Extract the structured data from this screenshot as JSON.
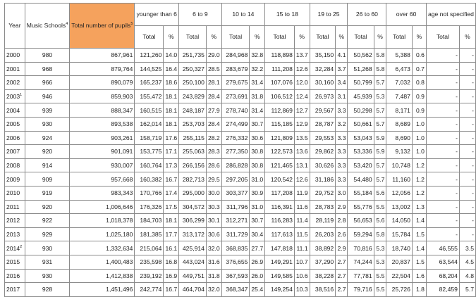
{
  "headers": {
    "year": "Year",
    "music_schools": "Music Schools",
    "music_schools_sup": "4",
    "total_pupils": "Total number of pupils",
    "total_pupils_sup": "5",
    "groups": [
      "younger than 6",
      "6 to 9",
      "10 to 14",
      "15 to 18",
      "19 to 25",
      "26 to 60",
      "over 60",
      "age not specified"
    ],
    "sub_total": "Total",
    "sub_pct": "%"
  },
  "rows": [
    {
      "year": "2000",
      "sup": "",
      "schools": "980",
      "total": "867,961",
      "cells": [
        "121,260",
        "14.0",
        "251,735",
        "29.0",
        "284,968",
        "32.8",
        "118,898",
        "13.7",
        "35,150",
        "4.1",
        "50,562",
        "5.8",
        "5,388",
        "0.6",
        "-",
        "-"
      ]
    },
    {
      "year": "2001",
      "sup": "",
      "schools": "968",
      "total": "879,764",
      "cells": [
        "144,525",
        "16.4",
        "250,327",
        "28.5",
        "283,679",
        "32.2",
        "111,208",
        "12.6",
        "32,284",
        "3.7",
        "51,268",
        "5.8",
        "6,473",
        "0.7",
        "-",
        "-"
      ]
    },
    {
      "year": "2002",
      "sup": "",
      "schools": "966",
      "total": "890,079",
      "cells": [
        "165,237",
        "18.6",
        "250,100",
        "28.1",
        "279,675",
        "31.4",
        "107,076",
        "12.0",
        "30,160",
        "3.4",
        "50,799",
        "5.7",
        "7,032",
        "0.8",
        "-",
        "-"
      ]
    },
    {
      "year": "2003",
      "sup": "1",
      "schools": "946",
      "total": "859,903",
      "cells": [
        "155,472",
        "18.1",
        "243,829",
        "28.4",
        "273,691",
        "31.8",
        "106,512",
        "12.4",
        "26,973",
        "3.1",
        "45,939",
        "5.3",
        "7,487",
        "0.9",
        "-",
        "-"
      ]
    },
    {
      "year": "2004",
      "sup": "",
      "schools": "939",
      "total": "888,347",
      "cells": [
        "160,515",
        "18.1",
        "248,187",
        "27.9",
        "278,740",
        "31.4",
        "112,869",
        "12.7",
        "29,567",
        "3.3",
        "50,298",
        "5.7",
        "8,171",
        "0.9",
        "-",
        "-"
      ]
    },
    {
      "year": "2005",
      "sup": "",
      "schools": "930",
      "total": "893,538",
      "cells": [
        "162,014",
        "18.1",
        "253,703",
        "28.4",
        "274,499",
        "30.7",
        "115,185",
        "12.9",
        "28,787",
        "3.2",
        "50,661",
        "5.7",
        "8,689",
        "1.0",
        "-",
        "-"
      ]
    },
    {
      "year": "2006",
      "sup": "",
      "schools": "924",
      "total": "903,261",
      "cells": [
        "158,719",
        "17.6",
        "255,115",
        "28.2",
        "276,332",
        "30.6",
        "121,809",
        "13.5",
        "29,553",
        "3.3",
        "53,043",
        "5.9",
        "8,690",
        "1.0",
        "-",
        "-"
      ]
    },
    {
      "year": "2007",
      "sup": "",
      "schools": "920",
      "total": "901,091",
      "cells": [
        "153,775",
        "17.1",
        "255,063",
        "28.3",
        "277,350",
        "30.8",
        "122,573",
        "13.6",
        "29,862",
        "3.3",
        "53,336",
        "5.9",
        "9,132",
        "1.0",
        "-",
        "-"
      ]
    },
    {
      "year": "2008",
      "sup": "",
      "schools": "914",
      "total": "930,007",
      "cells": [
        "160,764",
        "17.3",
        "266,156",
        "28.6",
        "286,828",
        "30.8",
        "121,465",
        "13.1",
        "30,626",
        "3.3",
        "53,420",
        "5.7",
        "10,748",
        "1.2",
        "-",
        "-"
      ]
    },
    {
      "year": "2009",
      "sup": "",
      "schools": "909",
      "total": "957,668",
      "cells": [
        "160,382",
        "16.7",
        "282,713",
        "29.5",
        "297,205",
        "31.0",
        "120,542",
        "12.6",
        "31,186",
        "3.3",
        "54,480",
        "5.7",
        "11,160",
        "1.2",
        "-",
        "-"
      ]
    },
    {
      "year": "2010",
      "sup": "",
      "schools": "919",
      "total": "983,343",
      "cells": [
        "170,766",
        "17.4",
        "295,000",
        "30.0",
        "303,377",
        "30.9",
        "117,208",
        "11.9",
        "29,752",
        "3.0",
        "55,184",
        "5.6",
        "12,056",
        "1.2",
        "-",
        "-"
      ]
    },
    {
      "year": "2011",
      "sup": "",
      "schools": "920",
      "total": "1,006,646",
      "cells": [
        "176,326",
        "17.5",
        "304,572",
        "30.3",
        "311,796",
        "31.0",
        "116,391",
        "11.6",
        "28,783",
        "2.9",
        "55,776",
        "5.5",
        "13,002",
        "1.3",
        "-",
        "-"
      ]
    },
    {
      "year": "2012",
      "sup": "",
      "schools": "922",
      "total": "1,018,378",
      "cells": [
        "184,703",
        "18.1",
        "306,299",
        "30.1",
        "312,271",
        "30.7",
        "116,283",
        "11.4",
        "28,119",
        "2.8",
        "56,653",
        "5.6",
        "14,050",
        "1.4",
        "-",
        "-"
      ]
    },
    {
      "year": "2013",
      "sup": "",
      "schools": "929",
      "total": "1,025,180",
      "cells": [
        "181,385",
        "17.7",
        "313,172",
        "30.6",
        "311,729",
        "30.4",
        "117,613",
        "11.5",
        "26,203",
        "2.6",
        "59,294",
        "5.8",
        "15,784",
        "1.5",
        "-",
        "-"
      ]
    },
    {
      "year": "2014",
      "sup": "2",
      "schools": "930",
      "total": "1,332,634",
      "cells": [
        "215,064",
        "16.1",
        "425,914",
        "32.0",
        "368,835",
        "27.7",
        "147,818",
        "11.1",
        "38,892",
        "2.9",
        "70,816",
        "5.3",
        "18,740",
        "1.4",
        "46,555",
        "3.5"
      ]
    },
    {
      "year": "2015",
      "sup": "",
      "schools": "931",
      "total": "1,400,483",
      "cells": [
        "235,598",
        "16.8",
        "443,024",
        "31.6",
        "376,655",
        "26.9",
        "149,291",
        "10.7",
        "37,290",
        "2.7",
        "74,244",
        "5.3",
        "20,837",
        "1.5",
        "63,544",
        "4.5"
      ]
    },
    {
      "year": "2016",
      "sup": "",
      "schools": "930",
      "total": "1,412,838",
      "cells": [
        "239,192",
        "16.9",
        "449,751",
        "31.8",
        "367,593",
        "26.0",
        "149,585",
        "10.6",
        "38,228",
        "2.7",
        "77,781",
        "5.5",
        "22,504",
        "1.6",
        "68,204",
        "4.8"
      ]
    },
    {
      "year": "2017",
      "sup": "",
      "schools": "928",
      "total": "1,451,496",
      "cells": [
        "242,774",
        "16.7",
        "464,704",
        "32.0",
        "368,347",
        "25.4",
        "149,254",
        "10.3",
        "38,516",
        "2.7",
        "79,716",
        "5.5",
        "25,726",
        "1.8",
        "82,459",
        "5.7"
      ]
    }
  ]
}
